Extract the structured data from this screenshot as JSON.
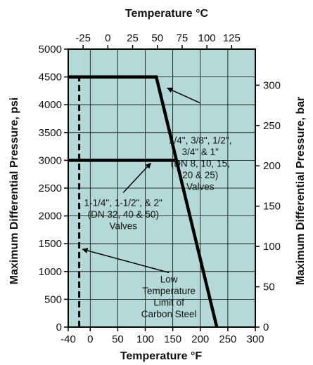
{
  "chart_data": {
    "type": "line",
    "title": "",
    "x_bottom": {
      "label": "Temperature °F",
      "range": [
        -40,
        300
      ],
      "ticks": [
        -40,
        0,
        50,
        100,
        150,
        200,
        250,
        300
      ],
      "tick_labels": [
        "-40",
        "0",
        "50",
        "100",
        "150",
        "200",
        "250",
        "300"
      ]
    },
    "x_top": {
      "label": "Temperature °C",
      "range": [
        -40,
        148.9
      ],
      "ticks": [
        -25,
        0,
        25,
        50,
        75,
        100,
        125
      ],
      "tick_labels": [
        "-25",
        "0",
        "25",
        "50",
        "75",
        "100",
        "125"
      ]
    },
    "y_left": {
      "label": "Maximum Differential Pressure, psi",
      "range": [
        0,
        5000
      ],
      "ticks": [
        0,
        500,
        1000,
        1500,
        2000,
        2500,
        3000,
        3500,
        4000,
        4500,
        5000
      ],
      "tick_labels": [
        "0",
        "500",
        "1000",
        "1500",
        "2000",
        "2500",
        "3000",
        "3500",
        "4000",
        "4500",
        "5000"
      ]
    },
    "y_right": {
      "label": "Maximum Differential Pressure, bar",
      "range": [
        0,
        344.7
      ],
      "ticks": [
        0,
        50,
        100,
        150,
        200,
        250,
        300
      ],
      "tick_labels": [
        "0",
        "50",
        "100",
        "150",
        "200",
        "250",
        "300"
      ]
    },
    "grid": true,
    "background_color": "#b5d9d6",
    "line_color": "#000000",
    "series": [
      {
        "name": "",
        "style": "solid",
        "x": [
          -40,
          120,
          230
        ],
        "y": [
          4500,
          4500,
          0
        ]
      },
      {
        "name": "",
        "style": "solid",
        "x": [
          -40,
          154
        ],
        "y": [
          3000,
          3000
        ]
      },
      {
        "name": "",
        "style": "dashed",
        "x": [
          -20,
          -20
        ],
        "y": [
          0,
          4500
        ]
      }
    ],
    "annotations": [
      {
        "lines": [
          "1/4\", 3/8\", 1/2\",",
          "3/4\" & 1\"",
          "(DN 8, 10, 15,",
          "20 & 25)",
          "Valves"
        ],
        "text_x": 200,
        "text_y": 3300,
        "arrow_from": [
          200,
          4030
        ],
        "arrow_to": [
          140,
          4300
        ]
      },
      {
        "lines": [
          "1-1/4\", 1-1/2\", & 2\"",
          "(DN 32, 40 & 50)",
          "Valves"
        ],
        "text_x": 60,
        "text_y": 2180,
        "arrow_from": [
          60,
          2420
        ],
        "arrow_to": [
          110,
          2950
        ]
      },
      {
        "lines": [
          "Low",
          "Temperature",
          "Limit of",
          "Carbon Steel"
        ],
        "text_x": 143,
        "text_y": 800,
        "arrow_from": [
          143,
          980
        ],
        "arrow_to": [
          -14,
          1400
        ]
      }
    ]
  }
}
